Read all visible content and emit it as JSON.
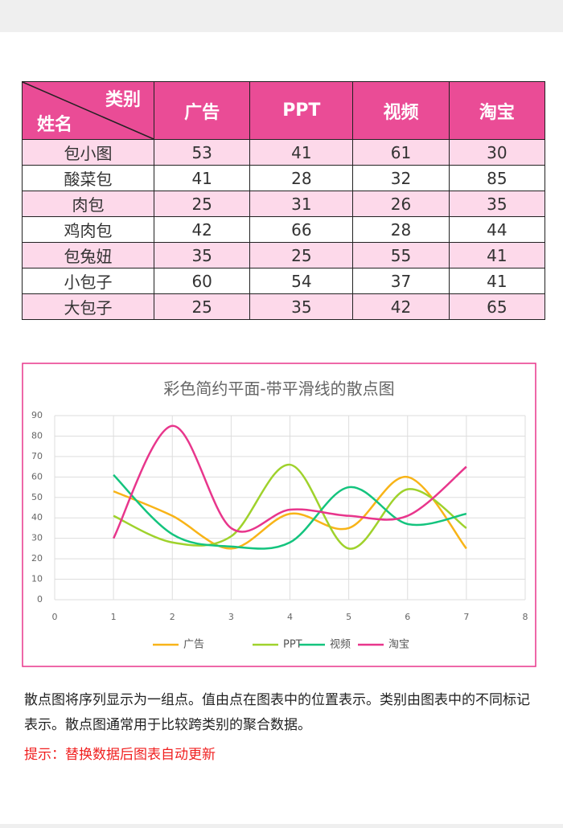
{
  "table": {
    "corner_top": "类别",
    "corner_bottom": "姓名",
    "headers": [
      "广告",
      "PPT",
      "视频",
      "淘宝"
    ],
    "rows": [
      [
        "包小图",
        53,
        41,
        61,
        30
      ],
      [
        "酸菜包",
        41,
        28,
        32,
        85
      ],
      [
        "肉包",
        25,
        31,
        26,
        35
      ],
      [
        "鸡肉包",
        42,
        66,
        28,
        44
      ],
      [
        "包兔妞",
        35,
        25,
        55,
        41
      ],
      [
        "小包子",
        60,
        54,
        37,
        41
      ],
      [
        "大包子",
        25,
        35,
        42,
        65
      ]
    ]
  },
  "chart_data": {
    "type": "scatter-smooth",
    "title": "彩色简约平面-带平滑线的散点图",
    "x": [
      1,
      2,
      3,
      4,
      5,
      6,
      7
    ],
    "series": [
      {
        "name": "广告",
        "color": "#f8b418",
        "values": [
          53,
          41,
          25,
          42,
          35,
          60,
          25
        ]
      },
      {
        "name": "PPT",
        "color": "#9fd22c",
        "values": [
          41,
          28,
          31,
          66,
          25,
          54,
          35
        ]
      },
      {
        "name": "视频",
        "color": "#14c47e",
        "values": [
          61,
          32,
          26,
          28,
          55,
          37,
          42
        ]
      },
      {
        "name": "淘宝",
        "color": "#e8368c",
        "values": [
          30,
          85,
          35,
          44,
          41,
          41,
          65
        ]
      }
    ],
    "xlim": [
      0,
      8
    ],
    "xticks": [
      0,
      1,
      2,
      3,
      4,
      5,
      6,
      7,
      8
    ],
    "ylim": [
      0,
      90
    ],
    "yticks": [
      0,
      10,
      20,
      30,
      40,
      50,
      60,
      70,
      80,
      90
    ],
    "grid": true,
    "legend": "bottom"
  },
  "description": "散点图将序列显示为一组点。值由点在图表中的位置表示。类别由图表中的不同标记表示。散点图通常用于比较跨类别的聚合数据。",
  "hint": "提示：替换数据后图表自动更新"
}
